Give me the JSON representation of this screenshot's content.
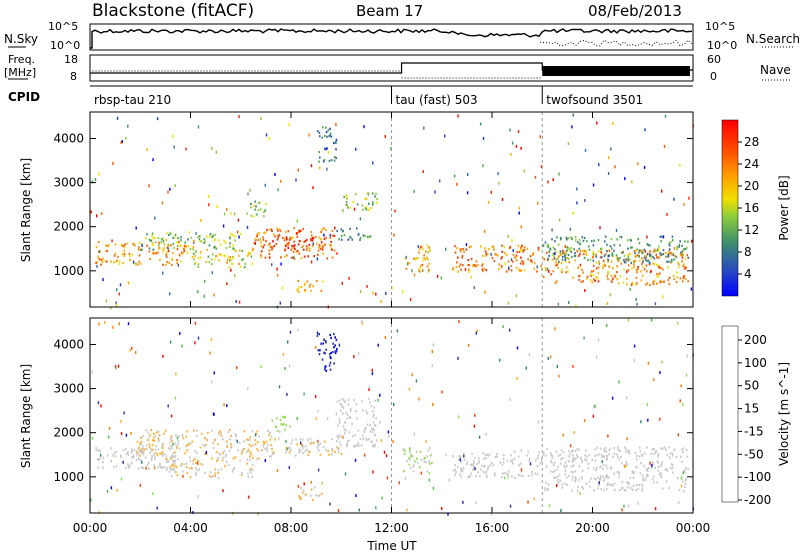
{
  "header": {
    "station": "Blackstone (fitACF)",
    "beam": "Beam 17",
    "date": "08/Feb/2013"
  },
  "top_panels": {
    "nsky_label": "N.Sky",
    "nsky_ticks": [
      "10^5",
      "10^0"
    ],
    "nsearch_label": "N.Search",
    "nsearch_ticks": [
      "10^5",
      "10^0"
    ],
    "freq_label_1": "Freq.",
    "freq_label_2": "[MHz]",
    "freq_ticks": [
      "18",
      "8"
    ],
    "nave_label": "Nave",
    "nave_ticks": [
      "60",
      "0"
    ],
    "cpid_label": "CPID",
    "cpid_modes": [
      {
        "name": "rbsp-tau 210",
        "start_hour": 0
      },
      {
        "name": "tau (fast) 503",
        "start_hour": 12
      },
      {
        "name": "twofsound 3501",
        "start_hour": 18
      }
    ]
  },
  "chart_data": [
    {
      "type": "heatmap",
      "title": "",
      "xlabel": "Time UT",
      "ylabel": "Slant Range [km]",
      "x_ticks": [
        "00:00",
        "04:00",
        "08:00",
        "12:00",
        "16:00",
        "20:00",
        "00:00"
      ],
      "x_tick_hours": [
        0,
        4,
        8,
        12,
        16,
        20,
        24
      ],
      "xlim": [
        0,
        24
      ],
      "y_ticks": [
        1000,
        2000,
        3000,
        4000
      ],
      "ylim": [
        180,
        4600
      ],
      "colorbar": {
        "label": "Power [dB]",
        "ticks": [
          "28",
          "24",
          "20",
          "16",
          "12",
          "8",
          "4"
        ],
        "range": [
          0,
          32
        ],
        "colors": [
          "#0000ff",
          "#1a3bc8",
          "#3a6aa8",
          "#3c8c6e",
          "#4aa84a",
          "#8ccc3c",
          "#f0e000",
          "#ffb000",
          "#ff8000",
          "#ff5000",
          "#ff2000",
          "#ff0000"
        ]
      },
      "regions": [
        {
          "t0": 0.2,
          "t1": 3.8,
          "r0": 1150,
          "r1": 1700,
          "v": 22
        },
        {
          "t0": 2.0,
          "t1": 6.0,
          "r0": 1500,
          "r1": 1900,
          "v": 14
        },
        {
          "t0": 4.0,
          "t1": 6.5,
          "r0": 1100,
          "r1": 1500,
          "v": 17
        },
        {
          "t0": 6.5,
          "t1": 9.8,
          "r0": 1300,
          "r1": 2000,
          "v": 24
        },
        {
          "t0": 7.2,
          "t1": 9.2,
          "r0": 1500,
          "r1": 1800,
          "v": 28
        },
        {
          "t0": 9.8,
          "t1": 11.2,
          "r0": 1700,
          "r1": 2000,
          "v": 9
        },
        {
          "t0": 10.0,
          "t1": 11.4,
          "r0": 2400,
          "r1": 2800,
          "v": 15
        },
        {
          "t0": 9.0,
          "t1": 9.8,
          "r0": 3500,
          "r1": 4300,
          "v": 8
        },
        {
          "t0": 8.2,
          "t1": 9.3,
          "r0": 500,
          "r1": 800,
          "v": 21
        },
        {
          "t0": 12.5,
          "t1": 13.6,
          "r0": 1000,
          "r1": 1600,
          "v": 20
        },
        {
          "t0": 14.4,
          "t1": 18.0,
          "r0": 1000,
          "r1": 1600,
          "v": 23
        },
        {
          "t0": 18.0,
          "t1": 23.8,
          "r0": 700,
          "r1": 1500,
          "v": 22
        },
        {
          "t0": 18.0,
          "t1": 23.8,
          "r0": 1200,
          "r1": 1800,
          "v": 10
        },
        {
          "t0": 6.2,
          "t1": 7.0,
          "r0": 2200,
          "r1": 2600,
          "v": 13
        }
      ]
    },
    {
      "type": "heatmap",
      "title": "",
      "xlabel": "Time UT",
      "ylabel": "Slant Range [km]",
      "x_ticks": [
        "00:00",
        "04:00",
        "08:00",
        "12:00",
        "16:00",
        "20:00",
        "00:00"
      ],
      "x_tick_hours": [
        0,
        4,
        8,
        12,
        16,
        20,
        24
      ],
      "xlim": [
        0,
        24
      ],
      "y_ticks": [
        1000,
        2000,
        3000,
        4000
      ],
      "ylim": [
        180,
        4600
      ],
      "colorbar": {
        "label": "Velocity [m s^-1]",
        "ticks": [
          "200",
          "100",
          "50",
          "15",
          "-15",
          "-50",
          "-100",
          "-200"
        ],
        "range": [
          -250,
          250
        ],
        "colors": [
          "#ff0000",
          "#ff4000",
          "#ff8000",
          "#ffb030",
          "#c8c8c8",
          "#c8c8c8",
          "#90dc50",
          "#4ab84a",
          "#2a8080",
          "#2030b0",
          "#0000ff"
        ]
      },
      "regions": [
        {
          "t0": 0.2,
          "t1": 3.5,
          "r0": 1200,
          "r1": 1700,
          "v": 0
        },
        {
          "t0": 1.8,
          "t1": 7.2,
          "r0": 1400,
          "r1": 2100,
          "v": -70
        },
        {
          "t0": 3.0,
          "t1": 6.5,
          "r0": 1000,
          "r1": 1400,
          "v": -60
        },
        {
          "t0": 7.0,
          "t1": 10.0,
          "r0": 1500,
          "r1": 1900,
          "v": -60
        },
        {
          "t0": 7.2,
          "t1": 8.0,
          "r0": 2000,
          "r1": 2400,
          "v": 40
        },
        {
          "t0": 9.8,
          "t1": 11.4,
          "r0": 1700,
          "r1": 2800,
          "v": 0
        },
        {
          "t0": 9.0,
          "t1": 9.8,
          "r0": 3400,
          "r1": 4300,
          "v": 200
        },
        {
          "t0": 8.2,
          "t1": 9.3,
          "r0": 500,
          "r1": 800,
          "v": -60
        },
        {
          "t0": 12.4,
          "t1": 13.6,
          "r0": 1100,
          "r1": 1700,
          "v": 20
        },
        {
          "t0": 14.4,
          "t1": 18.0,
          "r0": 1000,
          "r1": 1600,
          "v": 0
        },
        {
          "t0": 18.0,
          "t1": 23.8,
          "r0": 700,
          "r1": 1700,
          "v": 0
        }
      ]
    }
  ]
}
